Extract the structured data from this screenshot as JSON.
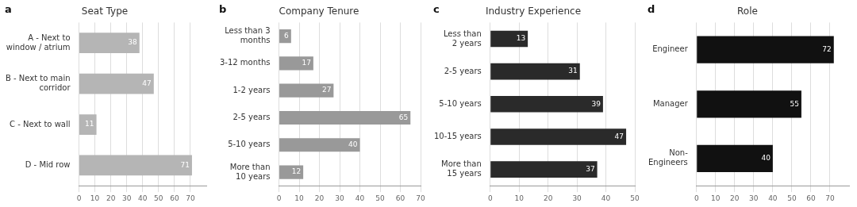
{
  "chart_data": [
    {
      "type": "bar",
      "orientation": "horizontal",
      "title": "Seat Type",
      "annotations": [
        "a"
      ],
      "categories": [
        "A - Next to\nwindow / atrium",
        "B - Next to main\ncorridor",
        "C - Next to wall",
        "D - Mid row"
      ],
      "values": [
        38,
        47,
        11,
        71
      ],
      "color": "#b5b5b5",
      "xlim": [
        0,
        80
      ],
      "xticks": [
        0,
        10,
        20,
        30,
        40,
        50,
        60,
        70
      ],
      "grid": true,
      "data_labels": true
    },
    {
      "type": "bar",
      "orientation": "horizontal",
      "title": "Company Tenure",
      "annotations": [
        "b"
      ],
      "categories": [
        "Less than 3\nmonths",
        "3-12 months",
        "1-2 years",
        "2-5 years",
        "5-10 years",
        "More than\n10 years"
      ],
      "values": [
        6,
        17,
        27,
        65,
        40,
        12
      ],
      "color": "#999999",
      "xlim": [
        0,
        70
      ],
      "xticks": [
        0,
        10,
        20,
        30,
        40,
        50,
        60,
        70
      ],
      "grid": true,
      "data_labels": true
    },
    {
      "type": "bar",
      "orientation": "horizontal",
      "title": "Industry Experience",
      "annotations": [
        "c"
      ],
      "categories": [
        "Less than\n2 years",
        "2-5 years",
        "5-10 years",
        "10-15 years",
        "More than\n15 years"
      ],
      "values": [
        13,
        31,
        39,
        47,
        37
      ],
      "color": "#2a2a2a",
      "xlim": [
        0,
        50
      ],
      "xticks": [
        0,
        10,
        20,
        30,
        40,
        50
      ],
      "grid": true,
      "data_labels": true
    },
    {
      "type": "bar",
      "orientation": "horizontal",
      "title": "Role",
      "annotations": [
        "d"
      ],
      "categories": [
        "Engineer",
        "Manager",
        "Non-\nEngineers"
      ],
      "values": [
        72,
        55,
        40
      ],
      "color": "#111111",
      "xlim": [
        0,
        80
      ],
      "xticks": [
        0,
        10,
        20,
        30,
        40,
        50,
        60,
        70
      ],
      "grid": true,
      "data_labels": true
    }
  ]
}
